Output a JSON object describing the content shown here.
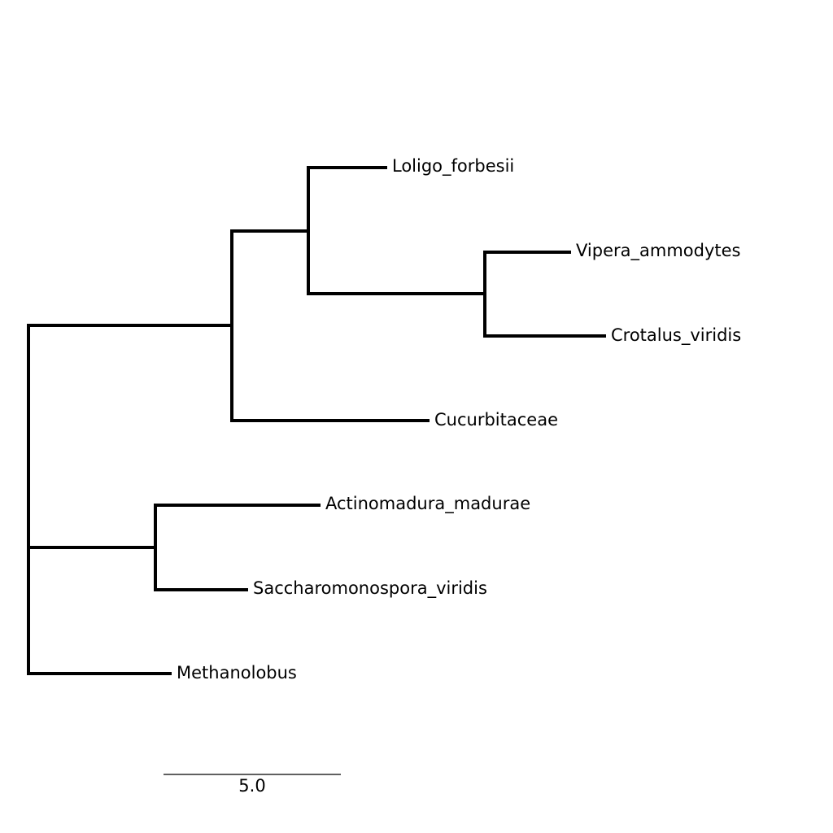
{
  "tree": {
    "leaves": [
      {
        "id": "loligo",
        "label": "Loligo_forbesii"
      },
      {
        "id": "vipera",
        "label": "Vipera_ammodytes"
      },
      {
        "id": "crotalus",
        "label": "Crotalus_viridis"
      },
      {
        "id": "cucurbit",
        "label": "Cucurbitaceae"
      },
      {
        "id": "actino",
        "label": "Actinomadura_madurae"
      },
      {
        "id": "saccharo",
        "label": "Saccharomonospora_viridis"
      },
      {
        "id": "methano",
        "label": "Methanolobus"
      }
    ],
    "scale_bar": {
      "length": 5.0,
      "label": "5.0"
    }
  }
}
